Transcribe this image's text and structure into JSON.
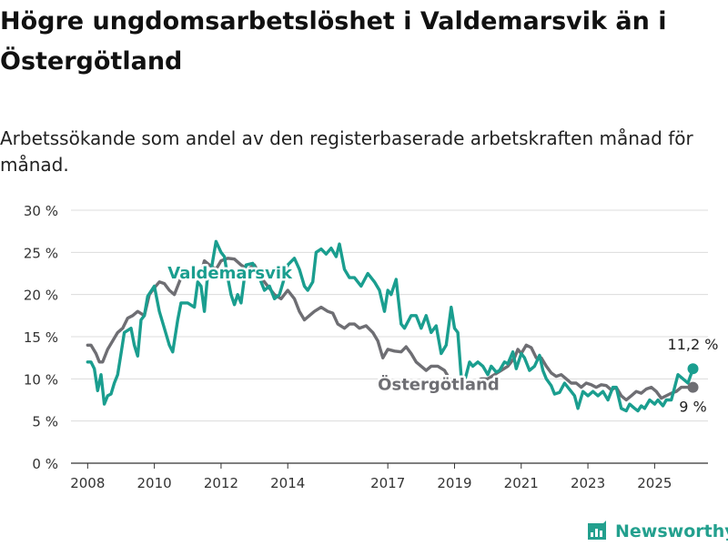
{
  "title": "Högre ungdomsarbetslöshet i Valdemarsvik än i Östergötland",
  "subtitle": "Arbetssökande som andel av den registerbaserade arbetskraften månad för månad.",
  "brand": {
    "name": "Newsworthy",
    "color": "#23a08e"
  },
  "chart_data": {
    "type": "line",
    "ylim": [
      0,
      30
    ],
    "y_ticks": [
      0,
      5,
      10,
      15,
      20,
      25,
      30
    ],
    "y_tick_labels": [
      "0 %",
      "5 %",
      "10 %",
      "15 %",
      "20 %",
      "25 %",
      "30 %"
    ],
    "x_ticks": [
      2008,
      2010,
      2012,
      2014,
      2017,
      2019,
      2021,
      2023,
      2025
    ],
    "x_tick_labels": [
      "2008",
      "2010",
      "2012",
      "2014",
      "2017",
      "2019",
      "2021",
      "2023",
      "2025"
    ],
    "grid": true,
    "series": [
      {
        "name": "Valdemarsvik",
        "color": "#1a9e8f",
        "end_label": "11,2 %",
        "points": [
          [
            2008.0,
            12.0
          ],
          [
            2008.1,
            12.0
          ],
          [
            2008.2,
            11.2
          ],
          [
            2008.3,
            8.6
          ],
          [
            2008.4,
            10.5
          ],
          [
            2008.5,
            7.0
          ],
          [
            2008.6,
            8.0
          ],
          [
            2008.7,
            8.2
          ],
          [
            2008.8,
            9.5
          ],
          [
            2008.9,
            10.5
          ],
          [
            2009.0,
            13.0
          ],
          [
            2009.1,
            15.5
          ],
          [
            2009.3,
            16.0
          ],
          [
            2009.4,
            14.0
          ],
          [
            2009.5,
            12.7
          ],
          [
            2009.6,
            17.0
          ],
          [
            2009.7,
            17.5
          ],
          [
            2009.8,
            19.8
          ],
          [
            2010.0,
            21.0
          ],
          [
            2010.15,
            18.0
          ],
          [
            2010.3,
            16.0
          ],
          [
            2010.45,
            14.0
          ],
          [
            2010.55,
            13.2
          ],
          [
            2010.7,
            17.0
          ],
          [
            2010.8,
            19.0
          ],
          [
            2011.0,
            19.0
          ],
          [
            2011.2,
            18.5
          ],
          [
            2011.3,
            21.5
          ],
          [
            2011.4,
            21.0
          ],
          [
            2011.5,
            18.0
          ],
          [
            2011.6,
            22.5
          ],
          [
            2011.7,
            22.8
          ],
          [
            2011.85,
            26.3
          ],
          [
            2012.0,
            25.0
          ],
          [
            2012.1,
            24.5
          ],
          [
            2012.2,
            22.0
          ],
          [
            2012.3,
            20.0
          ],
          [
            2012.4,
            18.8
          ],
          [
            2012.5,
            20.0
          ],
          [
            2012.6,
            19.0
          ],
          [
            2012.75,
            23.5
          ],
          [
            2012.95,
            23.7
          ],
          [
            2013.1,
            22.5
          ],
          [
            2013.3,
            20.5
          ],
          [
            2013.45,
            21.0
          ],
          [
            2013.6,
            19.5
          ],
          [
            2013.75,
            20.0
          ],
          [
            2013.9,
            22.0
          ],
          [
            2014.0,
            23.5
          ],
          [
            2014.2,
            24.3
          ],
          [
            2014.35,
            23.0
          ],
          [
            2014.5,
            21.0
          ],
          [
            2014.6,
            20.5
          ],
          [
            2014.75,
            21.5
          ],
          [
            2014.85,
            25.0
          ],
          [
            2015.0,
            25.4
          ],
          [
            2015.15,
            24.8
          ],
          [
            2015.3,
            25.5
          ],
          [
            2015.45,
            24.5
          ],
          [
            2015.55,
            26.0
          ],
          [
            2015.7,
            23.0
          ],
          [
            2015.85,
            22.0
          ],
          [
            2016.0,
            22.0
          ],
          [
            2016.2,
            21.0
          ],
          [
            2016.4,
            22.5
          ],
          [
            2016.6,
            21.5
          ],
          [
            2016.75,
            20.5
          ],
          [
            2016.9,
            18.0
          ],
          [
            2017.0,
            20.5
          ],
          [
            2017.1,
            20.0
          ],
          [
            2017.25,
            21.8
          ],
          [
            2017.4,
            16.5
          ],
          [
            2017.5,
            16.0
          ],
          [
            2017.7,
            17.5
          ],
          [
            2017.85,
            17.5
          ],
          [
            2018.0,
            16.0
          ],
          [
            2018.15,
            17.5
          ],
          [
            2018.3,
            15.5
          ],
          [
            2018.45,
            16.3
          ],
          [
            2018.6,
            13.0
          ],
          [
            2018.75,
            14.0
          ],
          [
            2018.9,
            18.5
          ],
          [
            2019.0,
            16.0
          ],
          [
            2019.1,
            15.5
          ],
          [
            2019.2,
            10.3
          ],
          [
            2019.3,
            9.7
          ],
          [
            2019.45,
            12.0
          ],
          [
            2019.55,
            11.5
          ],
          [
            2019.7,
            12.0
          ],
          [
            2019.85,
            11.5
          ],
          [
            2020.0,
            10.5
          ],
          [
            2020.1,
            11.5
          ],
          [
            2020.25,
            10.8
          ],
          [
            2020.35,
            11.0
          ],
          [
            2020.5,
            12.0
          ],
          [
            2020.6,
            11.8
          ],
          [
            2020.75,
            13.2
          ],
          [
            2020.85,
            11.2
          ],
          [
            2021.0,
            13.0
          ],
          [
            2021.1,
            12.5
          ],
          [
            2021.25,
            11.0
          ],
          [
            2021.4,
            11.5
          ],
          [
            2021.55,
            12.8
          ],
          [
            2021.65,
            11.0
          ],
          [
            2021.75,
            10.0
          ],
          [
            2021.9,
            9.2
          ],
          [
            2022.0,
            8.2
          ],
          [
            2022.15,
            8.4
          ],
          [
            2022.3,
            9.5
          ],
          [
            2022.5,
            8.5
          ],
          [
            2022.6,
            8.0
          ],
          [
            2022.7,
            6.5
          ],
          [
            2022.85,
            8.5
          ],
          [
            2023.0,
            8.0
          ],
          [
            2023.15,
            8.5
          ],
          [
            2023.3,
            8.0
          ],
          [
            2023.45,
            8.5
          ],
          [
            2023.6,
            7.5
          ],
          [
            2023.75,
            9.0
          ],
          [
            2023.85,
            9.0
          ],
          [
            2024.0,
            6.5
          ],
          [
            2024.15,
            6.2
          ],
          [
            2024.25,
            7.0
          ],
          [
            2024.4,
            6.5
          ],
          [
            2024.5,
            6.2
          ],
          [
            2024.6,
            6.8
          ],
          [
            2024.7,
            6.5
          ],
          [
            2024.85,
            7.5
          ],
          [
            2025.0,
            7.0
          ],
          [
            2025.1,
            7.5
          ],
          [
            2025.25,
            6.8
          ],
          [
            2025.35,
            7.5
          ],
          [
            2025.5,
            7.5
          ],
          [
            2025.6,
            9.0
          ],
          [
            2025.7,
            10.5
          ],
          [
            2025.85,
            10.0
          ],
          [
            2026.0,
            9.5
          ],
          [
            2026.15,
            11.2
          ]
        ]
      },
      {
        "name": "Östergötland",
        "color": "#6e6e73",
        "end_label": "9 %",
        "points": [
          [
            2008.0,
            14.0
          ],
          [
            2008.1,
            14.0
          ],
          [
            2008.25,
            13.0
          ],
          [
            2008.35,
            12.0
          ],
          [
            2008.45,
            12.0
          ],
          [
            2008.6,
            13.5
          ],
          [
            2008.75,
            14.5
          ],
          [
            2008.9,
            15.5
          ],
          [
            2009.05,
            16.0
          ],
          [
            2009.2,
            17.2
          ],
          [
            2009.35,
            17.5
          ],
          [
            2009.5,
            18.0
          ],
          [
            2009.7,
            17.5
          ],
          [
            2009.85,
            20.0
          ],
          [
            2010.0,
            20.8
          ],
          [
            2010.15,
            21.5
          ],
          [
            2010.3,
            21.3
          ],
          [
            2010.45,
            20.5
          ],
          [
            2010.6,
            20.0
          ],
          [
            2010.8,
            22.0
          ],
          [
            2011.0,
            22.7
          ],
          [
            2011.2,
            22.8
          ],
          [
            2011.4,
            22.5
          ],
          [
            2011.5,
            24.0
          ],
          [
            2011.65,
            23.5
          ],
          [
            2011.85,
            23.0
          ],
          [
            2012.0,
            24.0
          ],
          [
            2012.2,
            24.3
          ],
          [
            2012.4,
            24.2
          ],
          [
            2012.6,
            23.5
          ],
          [
            2012.8,
            23.0
          ],
          [
            2013.0,
            23.5
          ],
          [
            2013.2,
            22.0
          ],
          [
            2013.4,
            21.0
          ],
          [
            2013.6,
            20.0
          ],
          [
            2013.8,
            19.5
          ],
          [
            2014.0,
            20.5
          ],
          [
            2014.2,
            19.5
          ],
          [
            2014.35,
            18.0
          ],
          [
            2014.5,
            17.0
          ],
          [
            2014.65,
            17.5
          ],
          [
            2014.8,
            18.0
          ],
          [
            2015.0,
            18.5
          ],
          [
            2015.2,
            18.0
          ],
          [
            2015.35,
            17.8
          ],
          [
            2015.5,
            16.5
          ],
          [
            2015.7,
            16.0
          ],
          [
            2015.85,
            16.5
          ],
          [
            2016.0,
            16.5
          ],
          [
            2016.15,
            16.0
          ],
          [
            2016.35,
            16.3
          ],
          [
            2016.55,
            15.5
          ],
          [
            2016.7,
            14.5
          ],
          [
            2016.85,
            12.5
          ],
          [
            2017.0,
            13.5
          ],
          [
            2017.2,
            13.3
          ],
          [
            2017.4,
            13.2
          ],
          [
            2017.55,
            13.8
          ],
          [
            2017.7,
            13.0
          ],
          [
            2017.85,
            12.0
          ],
          [
            2018.0,
            11.5
          ],
          [
            2018.15,
            11.0
          ],
          [
            2018.3,
            11.5
          ],
          [
            2018.5,
            11.5
          ],
          [
            2018.7,
            11.0
          ],
          [
            2018.85,
            10.0
          ],
          [
            2019.0,
            9.5
          ],
          [
            2019.2,
            9.2
          ],
          [
            2019.4,
            9.5
          ],
          [
            2019.6,
            9.5
          ],
          [
            2019.8,
            10.0
          ],
          [
            2020.0,
            10.0
          ],
          [
            2020.2,
            10.5
          ],
          [
            2020.4,
            11.0
          ],
          [
            2020.6,
            11.5
          ],
          [
            2020.8,
            12.5
          ],
          [
            2020.9,
            13.5
          ],
          [
            2021.0,
            13.0
          ],
          [
            2021.15,
            14.0
          ],
          [
            2021.3,
            13.7
          ],
          [
            2021.45,
            12.5
          ],
          [
            2021.6,
            12.5
          ],
          [
            2021.75,
            11.5
          ],
          [
            2021.9,
            10.7
          ],
          [
            2022.05,
            10.3
          ],
          [
            2022.2,
            10.5
          ],
          [
            2022.35,
            10.0
          ],
          [
            2022.5,
            9.5
          ],
          [
            2022.65,
            9.5
          ],
          [
            2022.8,
            9.0
          ],
          [
            2022.95,
            9.5
          ],
          [
            2023.1,
            9.3
          ],
          [
            2023.25,
            9.0
          ],
          [
            2023.4,
            9.3
          ],
          [
            2023.55,
            9.2
          ],
          [
            2023.7,
            8.7
          ],
          [
            2023.85,
            9.0
          ],
          [
            2024.0,
            8.0
          ],
          [
            2024.15,
            7.5
          ],
          [
            2024.3,
            8.0
          ],
          [
            2024.45,
            8.5
          ],
          [
            2024.6,
            8.3
          ],
          [
            2024.75,
            8.8
          ],
          [
            2024.9,
            9.0
          ],
          [
            2025.05,
            8.5
          ],
          [
            2025.2,
            7.7
          ],
          [
            2025.35,
            8.0
          ],
          [
            2025.5,
            8.3
          ],
          [
            2025.65,
            8.5
          ],
          [
            2025.8,
            9.0
          ],
          [
            2025.95,
            9.0
          ],
          [
            2026.15,
            9.0
          ]
        ]
      }
    ]
  }
}
